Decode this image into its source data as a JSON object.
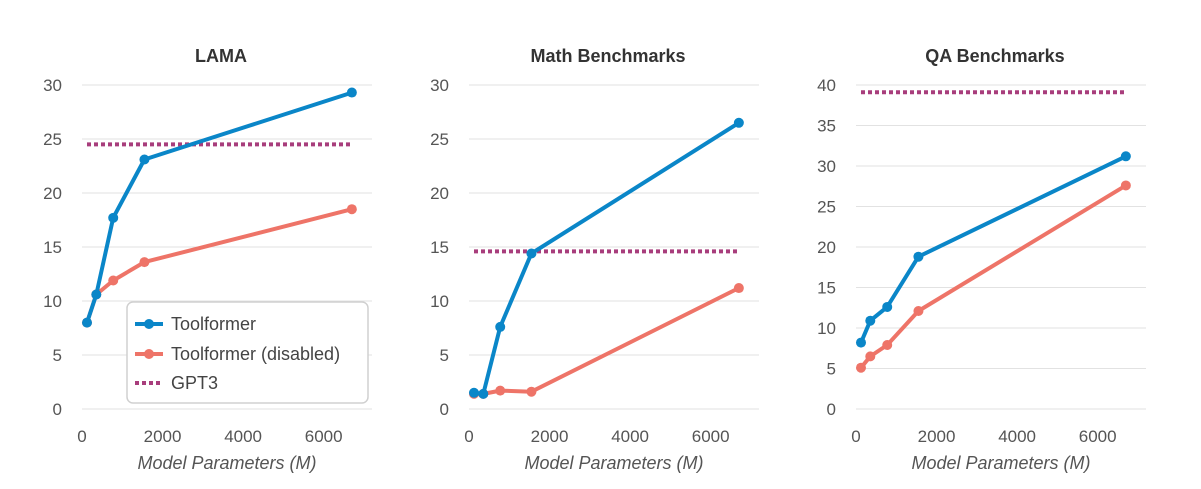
{
  "colors": {
    "toolformer": "#0a86c8",
    "disabled": "#ee7468",
    "gpt3": "#a83d7c",
    "grid": "#e2e2e2"
  },
  "legend": {
    "items": [
      {
        "name": "Toolformer",
        "style": "line-dot",
        "color_key": "toolformer"
      },
      {
        "name": "Toolformer (disabled)",
        "style": "line-dot",
        "color_key": "disabled"
      },
      {
        "name": "GPT3",
        "style": "dotted",
        "color_key": "gpt3"
      }
    ]
  },
  "chart_data": [
    {
      "type": "line",
      "title": "LAMA",
      "xlabel": "Model Parameters (M)",
      "ylabel": "",
      "xlim": [
        0,
        7200
      ],
      "ylim": [
        0,
        30
      ],
      "xticks": [
        0,
        2000,
        4000,
        6000
      ],
      "yticks": [
        0,
        5,
        10,
        15,
        20,
        25,
        30
      ],
      "grid": true,
      "legend_position": "bottom-right",
      "series": [
        {
          "name": "Toolformer",
          "x": [
            124,
            355,
            775,
            1550,
            6700
          ],
          "y": [
            8.0,
            10.6,
            17.7,
            23.1,
            29.3
          ]
        },
        {
          "name": "Toolformer (disabled)",
          "x": [
            124,
            355,
            775,
            1550,
            6700
          ],
          "y": [
            8.0,
            10.6,
            11.9,
            13.6,
            18.5
          ]
        }
      ],
      "reference": {
        "name": "GPT3",
        "x": [
          124,
          6700
        ],
        "y": 24.5
      }
    },
    {
      "type": "line",
      "title": "Math Benchmarks",
      "xlabel": "Model Parameters (M)",
      "ylabel": "",
      "xlim": [
        0,
        7200
      ],
      "ylim": [
        0,
        30
      ],
      "xticks": [
        0,
        2000,
        4000,
        6000
      ],
      "yticks": [
        0,
        5,
        10,
        15,
        20,
        25,
        30
      ],
      "grid": true,
      "series": [
        {
          "name": "Toolformer",
          "x": [
            124,
            355,
            775,
            1550,
            6700
          ],
          "y": [
            1.5,
            1.4,
            7.6,
            14.4,
            26.5
          ]
        },
        {
          "name": "Toolformer (disabled)",
          "x": [
            124,
            355,
            775,
            1550,
            6700
          ],
          "y": [
            1.4,
            1.4,
            1.7,
            1.6,
            11.2
          ]
        }
      ],
      "reference": {
        "name": "GPT3",
        "x": [
          124,
          6700
        ],
        "y": 14.6
      }
    },
    {
      "type": "line",
      "title": "QA Benchmarks",
      "xlabel": "Model Parameters (M)",
      "ylabel": "",
      "xlim": [
        0,
        7200
      ],
      "ylim": [
        0,
        40
      ],
      "xticks": [
        0,
        2000,
        4000,
        6000
      ],
      "yticks": [
        0,
        5,
        10,
        15,
        20,
        25,
        30,
        35,
        40
      ],
      "grid": true,
      "series": [
        {
          "name": "Toolformer",
          "x": [
            124,
            355,
            775,
            1550,
            6700
          ],
          "y": [
            8.2,
            10.9,
            12.6,
            18.8,
            31.2
          ]
        },
        {
          "name": "Toolformer (disabled)",
          "x": [
            124,
            355,
            775,
            1550,
            6700
          ],
          "y": [
            5.1,
            6.5,
            7.9,
            12.1,
            27.6
          ]
        }
      ],
      "reference": {
        "name": "GPT3",
        "x": [
          124,
          6700
        ],
        "y": 39.1
      }
    }
  ]
}
